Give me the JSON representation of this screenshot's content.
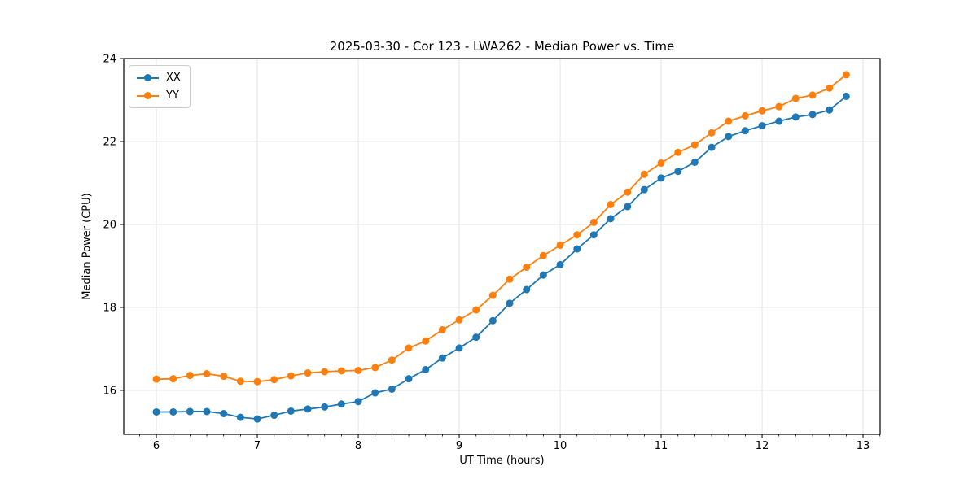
{
  "figure": {
    "background": "#ffffff"
  },
  "chart_data": {
    "type": "line",
    "title": "2025-03-30 - Cor 123 - LWA262 - Median Power vs. Time",
    "xlabel": "UT Time (hours)",
    "ylabel": "Median Power (CPU)",
    "x": [
      6.0,
      6.167,
      6.333,
      6.5,
      6.667,
      6.833,
      7.0,
      7.167,
      7.333,
      7.5,
      7.667,
      7.833,
      8.0,
      8.167,
      8.333,
      8.5,
      8.667,
      8.833,
      9.0,
      9.167,
      9.333,
      9.5,
      9.667,
      9.833,
      10.0,
      10.167,
      10.333,
      10.5,
      10.667,
      10.833,
      11.0,
      11.167,
      11.333,
      11.5,
      11.667,
      11.833,
      12.0,
      12.167,
      12.333,
      12.5,
      12.667,
      12.833
    ],
    "series": [
      {
        "name": "XX",
        "color": "#1f77b4",
        "marker": "circle",
        "values": [
          15.48,
          15.48,
          15.49,
          15.49,
          15.44,
          15.35,
          15.31,
          15.4,
          15.5,
          15.55,
          15.6,
          15.67,
          15.73,
          15.94,
          16.03,
          16.28,
          16.5,
          16.78,
          17.02,
          17.28,
          17.68,
          18.1,
          18.43,
          18.78,
          19.03,
          19.41,
          19.75,
          20.14,
          20.43,
          20.84,
          21.12,
          21.28,
          21.5,
          21.86,
          22.12,
          22.26,
          22.38,
          22.49,
          22.59,
          22.65,
          22.76,
          23.09
        ]
      },
      {
        "name": "YY",
        "color": "#ff7f0e",
        "marker": "circle",
        "values": [
          16.27,
          16.28,
          16.36,
          16.4,
          16.34,
          16.22,
          16.21,
          16.26,
          16.35,
          16.42,
          16.45,
          16.47,
          16.48,
          16.55,
          16.73,
          17.02,
          17.19,
          17.46,
          17.7,
          17.94,
          18.29,
          18.68,
          18.97,
          19.25,
          19.5,
          19.75,
          20.05,
          20.48,
          20.78,
          21.21,
          21.48,
          21.74,
          21.92,
          22.21,
          22.49,
          22.62,
          22.74,
          22.84,
          23.04,
          23.12,
          23.29,
          23.61
        ]
      }
    ],
    "xticks": [
      6,
      7,
      8,
      9,
      10,
      11,
      12,
      13
    ],
    "yticks": [
      16,
      18,
      20,
      22,
      24
    ],
    "xlim": [
      5.677,
      13.169
    ],
    "ylim": [
      14.94,
      24.0
    ],
    "x_minor_step": 0.16667,
    "grid": true,
    "grid_color": "#e5e5e5",
    "spine_color": "#000000",
    "legend_position": "upper-left"
  }
}
